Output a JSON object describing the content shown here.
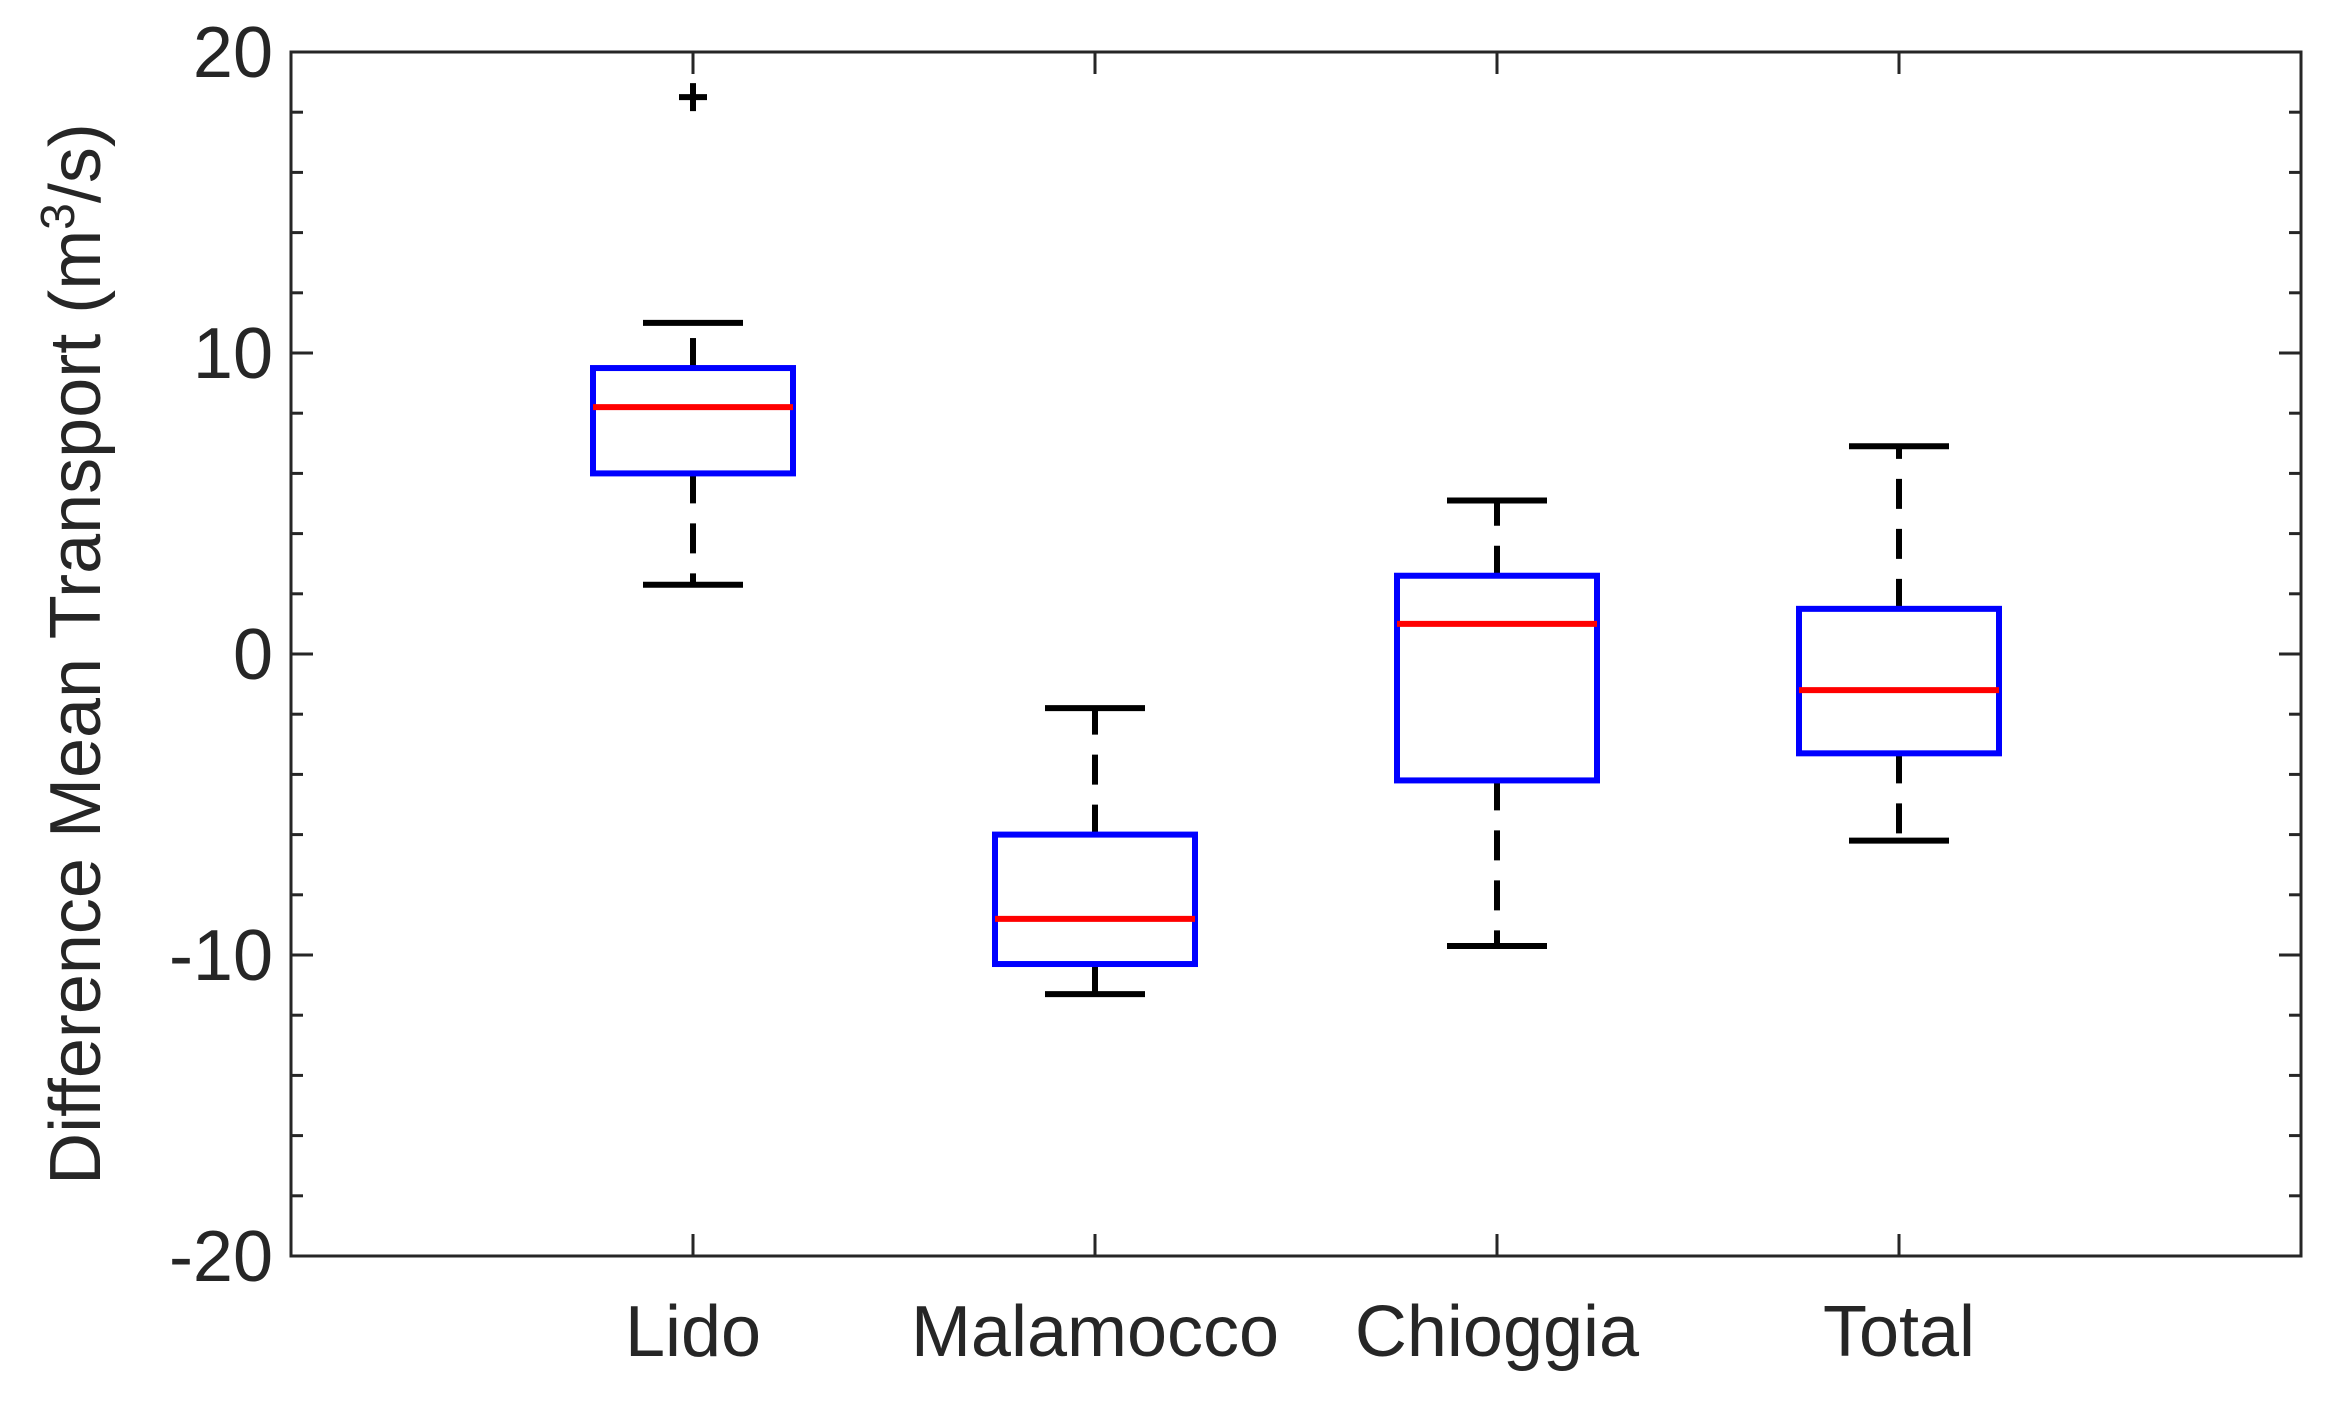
{
  "chart_data": {
    "type": "boxplot",
    "title": "",
    "xlabel": "",
    "ylabel": {
      "prefix": "Difference Mean Transport (m",
      "superscript": "3",
      "suffix": "/s)"
    },
    "ylim": [
      -20,
      20
    ],
    "yticks": [
      -20,
      -10,
      0,
      10,
      20
    ],
    "yticks_minor_step": 2,
    "grid": false,
    "categories": [
      "Lido",
      "Malamocco",
      "Chioggia",
      "Total"
    ],
    "boxes": [
      {
        "name": "Lido",
        "whisker_low": 2.3,
        "q1": 6.0,
        "median": 8.2,
        "q3": 9.5,
        "whisker_high": 11.0,
        "outliers": [
          18.5
        ]
      },
      {
        "name": "Malamocco",
        "whisker_low": -11.3,
        "q1": -10.3,
        "median": -8.8,
        "q3": -6.0,
        "whisker_high": -1.8,
        "outliers": []
      },
      {
        "name": "Chioggia",
        "whisker_low": -9.7,
        "q1": -4.2,
        "median": 1.0,
        "q3": 2.6,
        "whisker_high": 5.1,
        "outliers": []
      },
      {
        "name": "Total",
        "whisker_low": -6.2,
        "q1": -3.3,
        "median": -1.2,
        "q3": 1.5,
        "whisker_high": 6.9,
        "outliers": []
      }
    ],
    "colors": {
      "box": "#0000ff",
      "median": "#ff0000",
      "whisker": "#000000",
      "outlier": "#000000",
      "axis": "#262626"
    }
  }
}
